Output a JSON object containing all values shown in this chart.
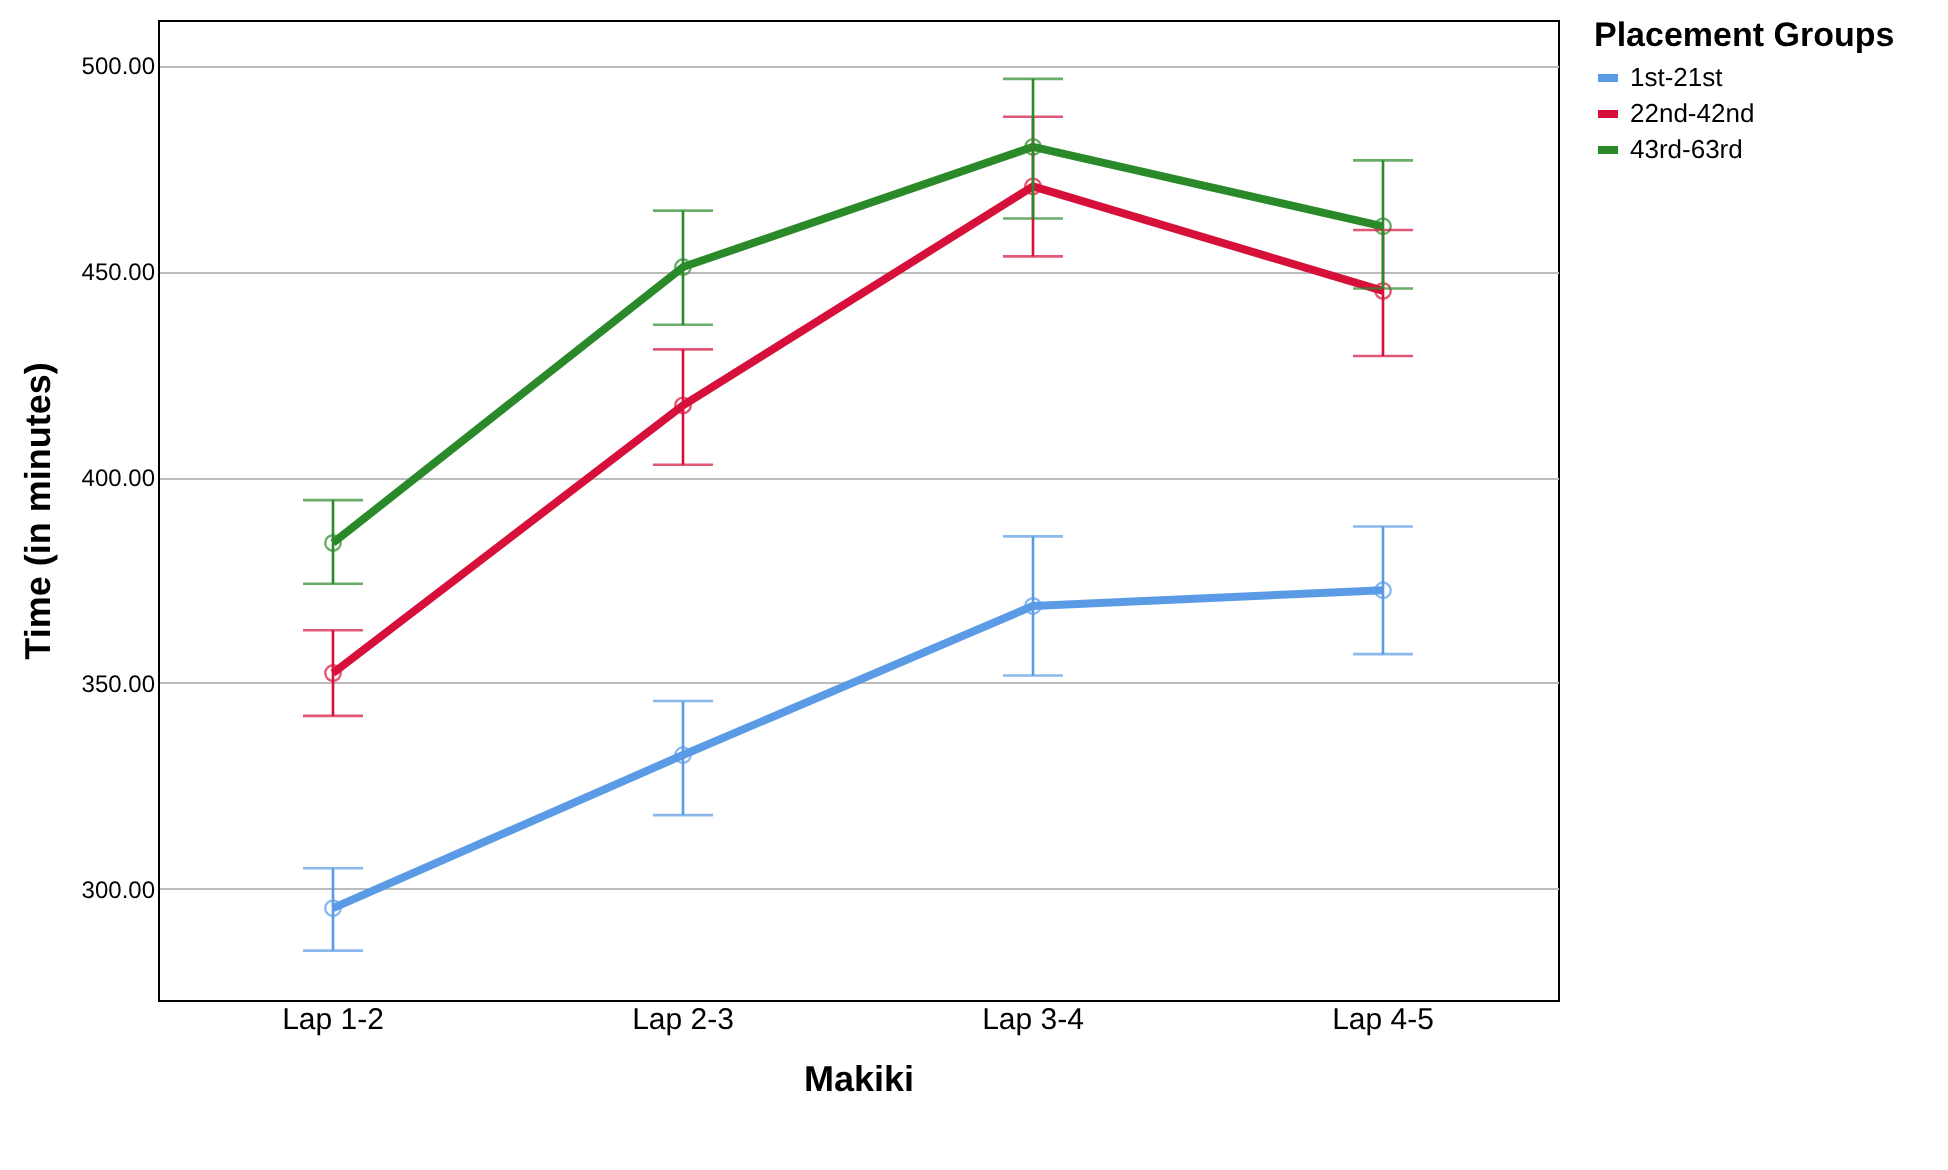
{
  "chart_data": {
    "type": "line",
    "xlabel": "Makiki",
    "ylabel": "Time (in minutes)",
    "legend_title": "Placement Groups",
    "categories": [
      "Lap 1-2",
      "Lap 2-3",
      "Lap 3-4",
      "Lap 4-5"
    ],
    "series": [
      {
        "name": "1st-21st",
        "color": "#5b9be6",
        "values": [
          295.3,
          332.5,
          368.7,
          372.5
        ],
        "errors": [
          [
            285,
            305
          ],
          [
            317.9,
            345.6
          ],
          [
            351.8,
            385.6
          ],
          [
            357,
            388
          ]
        ]
      },
      {
        "name": "22nd-42nd",
        "color": "#d6103a",
        "values": [
          352.4,
          417.4,
          470.6,
          445.2
        ],
        "errors": [
          [
            342,
            362.8
          ],
          [
            403,
            431
          ],
          [
            453.6,
            487.5
          ],
          [
            429.4,
            460
          ]
        ]
      },
      {
        "name": "43rd-63rd",
        "color": "#2a8a2a",
        "values": [
          384,
          451,
          480.2,
          460.9
        ],
        "errors": [
          [
            374.1,
            394.4
          ],
          [
            437,
            464.7
          ],
          [
            462.8,
            496.7
          ],
          [
            445.8,
            476.9
          ]
        ]
      }
    ],
    "ylim": [
      273,
      511
    ],
    "yticks": [
      {
        "value": 300,
        "label": "300.00"
      },
      {
        "value": 350,
        "label": "350.00"
      },
      {
        "value": 400,
        "label": "400.00"
      },
      {
        "value": 450,
        "label": "450.00"
      },
      {
        "value": 500,
        "label": "500.00"
      }
    ],
    "grid": "y",
    "legend": "top right",
    "marker": "circle",
    "line_style": "solid"
  }
}
